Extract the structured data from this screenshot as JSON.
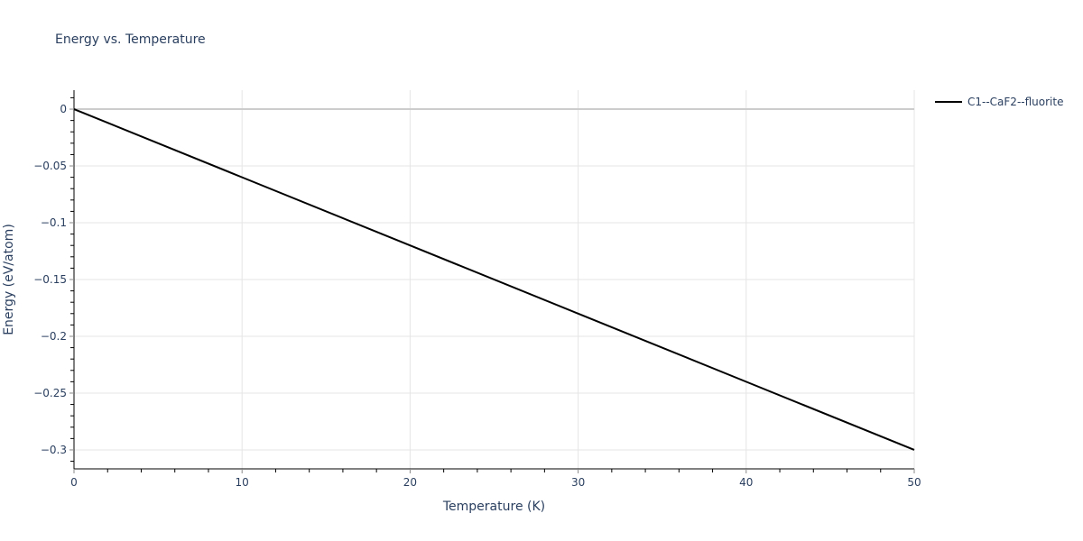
{
  "chart_data": {
    "type": "line",
    "title": "Energy vs. Temperature",
    "xlabel": "Temperature (K)",
    "ylabel": "Energy (eV/atom)",
    "xlim": [
      0,
      50
    ],
    "ylim": [
      -0.3167,
      0.0167
    ],
    "x_ticks": [
      0,
      10,
      20,
      30,
      40,
      50
    ],
    "y_ticks": [
      0,
      -0.05,
      -0.1,
      -0.15,
      -0.2,
      -0.25,
      -0.3
    ],
    "y_tick_labels": [
      "0",
      "−0.05",
      "−0.1",
      "−0.15",
      "−0.2",
      "−0.25",
      "−0.3"
    ],
    "grid": true,
    "legend_position": "right-top",
    "series": [
      {
        "name": "C1--CaF2--fluorite",
        "color": "#000000",
        "x": [
          0,
          10,
          20,
          30,
          40,
          50
        ],
        "y": [
          0,
          -0.06,
          -0.12,
          -0.18,
          -0.24,
          -0.3
        ]
      }
    ]
  },
  "colors": {
    "text": "#2a3f5f",
    "grid": "#e5e5e5",
    "zeroline": "#cccccc",
    "axis": "#000000"
  }
}
